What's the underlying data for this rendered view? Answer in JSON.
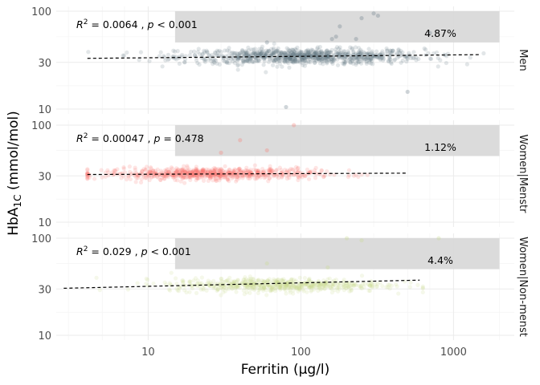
{
  "chart_data": {
    "type": "scatter",
    "x_scale": "log10",
    "y_scale": "log10",
    "xlabel": "Ferritin (µg/l)",
    "ylabel": {
      "base": "HbA",
      "subscript": "1C",
      "rest": " (mmol/mol)"
    },
    "xlim": [
      2.5,
      2500
    ],
    "ylim": [
      9,
      100
    ],
    "x_ticks": [
      10,
      100,
      1000
    ],
    "x_tick_labels": [
      "10",
      "100",
      "1000"
    ],
    "y_ticks": [
      10,
      30,
      100
    ],
    "y_tick_labels": [
      "10",
      "30",
      "100"
    ],
    "threshold_box": {
      "x_range": [
        15,
        2000
      ],
      "y_range": [
        48,
        100
      ],
      "color": "#d9d9d9"
    },
    "panels": [
      {
        "strip": "Men",
        "color": "#5f7480",
        "r2_label": "0.0064",
        "p_op": "<",
        "p_value": "0.001",
        "percent_label": "4.87%",
        "fit": {
          "x_range": [
            4,
            1500
          ],
          "y_range": [
            33,
            36
          ]
        },
        "cloud": {
          "x_center": 100,
          "x_sd_log10": 0.4,
          "y_center": 34.5,
          "y_sd_log10": 0.04,
          "n": 900
        },
        "outliers": [
          [
            80,
            10.5
          ],
          [
            250,
            85
          ],
          [
            180,
            70
          ],
          [
            300,
            95
          ],
          [
            320,
            90
          ],
          [
            500,
            15
          ],
          [
            700,
            60
          ],
          [
            170,
            55
          ],
          [
            60,
            48
          ],
          [
            230,
            52
          ],
          [
            160,
            52
          ]
        ]
      },
      {
        "strip": "Women|Menstr",
        "color": "#f8766d",
        "r2_label": "0.00047",
        "p_op": "=",
        "p_value": "0.478",
        "percent_label": "1.12%",
        "fit": {
          "x_range": [
            4,
            500
          ],
          "y_range": [
            31,
            32
          ]
        },
        "cloud": {
          "x_center": 25,
          "x_sd_log10": 0.35,
          "y_center": 31.5,
          "y_sd_log10": 0.03,
          "n": 700
        },
        "outliers": [
          [
            90,
            100
          ],
          [
            40,
            70
          ],
          [
            60,
            55
          ],
          [
            30,
            52
          ]
        ]
      },
      {
        "strip": "Women|Non-menst",
        "color": "#c8d98a",
        "r2_label": "0.029",
        "p_op": "<",
        "p_value": "0.001",
        "percent_label": "4.4%",
        "fit": {
          "x_range": [
            2.8,
            600
          ],
          "y_range": [
            30.5,
            37
          ]
        },
        "cloud": {
          "x_center": 70,
          "x_sd_log10": 0.35,
          "y_center": 33,
          "y_sd_log10": 0.035,
          "n": 600
        },
        "outliers": [
          [
            200,
            100
          ],
          [
            250,
            95
          ],
          [
            800,
            100
          ],
          [
            60,
            55
          ],
          [
            150,
            50
          ]
        ]
      }
    ]
  }
}
